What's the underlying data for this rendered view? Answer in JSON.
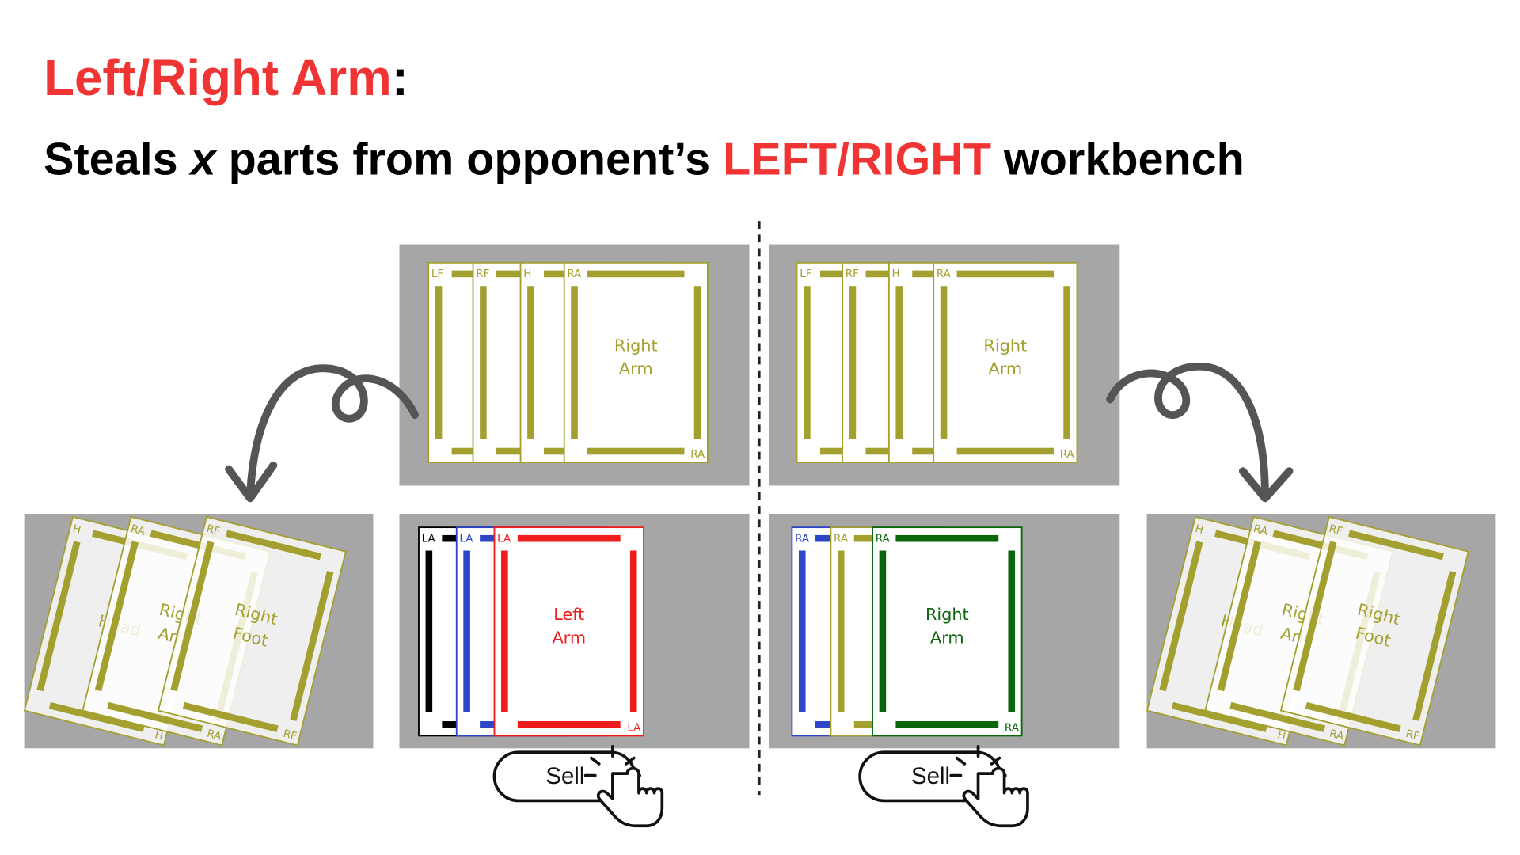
{
  "header": {
    "title": "Left/Right Arm",
    "title_colon": ":",
    "subtitle": {
      "before": "Steals ",
      "variable": "x",
      "middle": " parts from opponent’s ",
      "highlight": "LEFT/RIGHT",
      "after": " workbench"
    }
  },
  "workbenches": [
    {
      "cards": [
        {
          "tag": "LF",
          "color": "#a3a030"
        },
        {
          "tag": "RF",
          "color": "#a3a030"
        },
        {
          "tag": "H",
          "color": "#a3a030"
        },
        {
          "tag": "RA",
          "color": "#a3a030",
          "name_lines": [
            "Right",
            "Arm"
          ]
        }
      ]
    },
    {
      "cards": [
        {
          "tag": "LF",
          "color": "#a3a030"
        },
        {
          "tag": "RF",
          "color": "#a3a030"
        },
        {
          "tag": "H",
          "color": "#a3a030"
        },
        {
          "tag": "RA",
          "color": "#a3a030",
          "name_lines": [
            "Right",
            "Arm"
          ]
        }
      ]
    },
    {
      "cards": [
        {
          "tag": "LA",
          "color": "#000000"
        },
        {
          "tag": "LA",
          "color": "#2d46c8"
        },
        {
          "tag": "LA",
          "color": "#ee1c1c",
          "name_lines": [
            "Left",
            "Arm"
          ]
        }
      ]
    },
    {
      "cards": [
        {
          "tag": "RA",
          "color": "#2d46c8"
        },
        {
          "tag": "RA",
          "color": "#a3a030"
        },
        {
          "tag": "RA",
          "color": "#0b650b",
          "name_lines": [
            "Right",
            "Arm"
          ]
        }
      ]
    },
    {
      "cards": [
        {
          "tag": "H",
          "color": "#a3a030",
          "name_lines": [
            "Head"
          ]
        },
        {
          "tag": "RA",
          "color": "#a3a030",
          "name_lines": [
            "Right",
            "Arm"
          ]
        },
        {
          "tag": "RF",
          "color": "#a3a030",
          "name_lines": [
            "Right",
            "Foot"
          ]
        }
      ]
    },
    {
      "cards": [
        {
          "tag": "H",
          "color": "#a3a030",
          "name_lines": [
            "Head"
          ]
        },
        {
          "tag": "RA",
          "color": "#a3a030",
          "name_lines": [
            "Right",
            "Arm"
          ]
        },
        {
          "tag": "RF",
          "color": "#a3a030",
          "name_lines": [
            "Right",
            "Foot"
          ]
        }
      ]
    }
  ],
  "sell_buttons": [
    "Sell",
    "Sell"
  ]
}
